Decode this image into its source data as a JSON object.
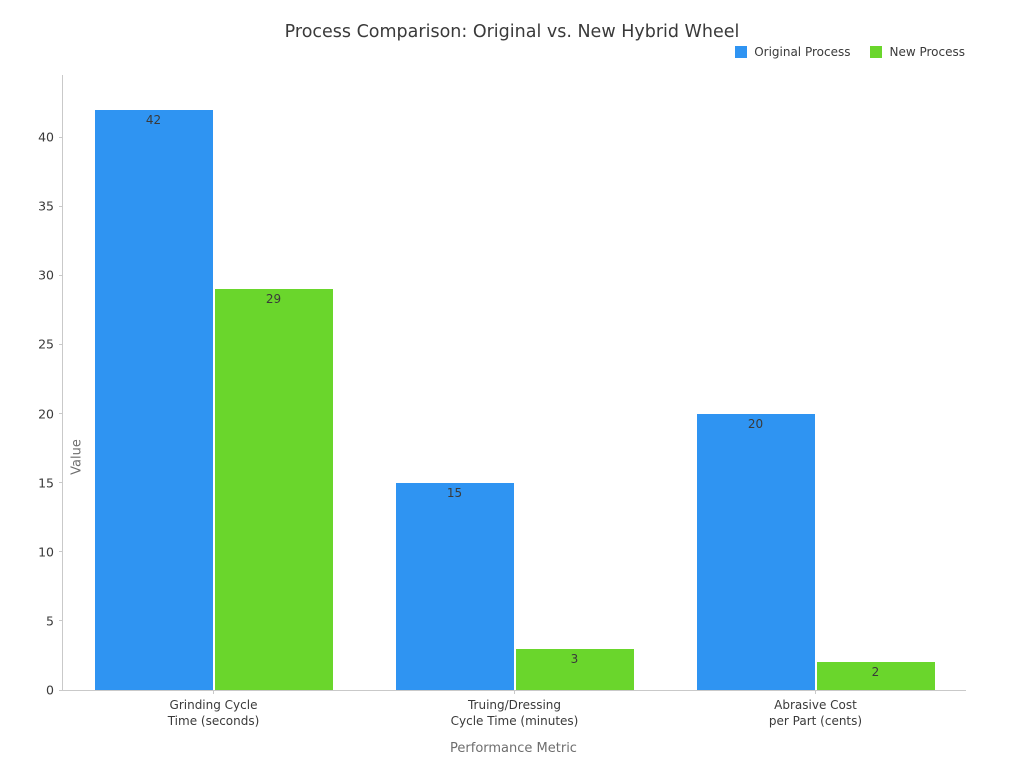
{
  "title": "Process Comparison: Original vs. New Hybrid Wheel",
  "chart_data": {
    "type": "bar",
    "title": "Process Comparison: Original vs. New Hybrid Wheel",
    "xlabel": "Performance Metric",
    "ylabel": "Value",
    "categories": [
      [
        "Grinding Cycle",
        "Time (seconds)"
      ],
      [
        "Truing/Dressing",
        "Cycle Time (minutes)"
      ],
      [
        "Abrasive Cost",
        "per Part (cents)"
      ]
    ],
    "series": [
      {
        "name": "Original Process",
        "color": "#2F94F2",
        "values": [
          42,
          15,
          20
        ]
      },
      {
        "name": "New Process",
        "color": "#6AD62C",
        "values": [
          29,
          3,
          2
        ]
      }
    ],
    "ylim": [
      0,
      44.5
    ],
    "yticks": [
      0,
      5,
      10,
      15,
      20,
      25,
      30,
      35,
      40
    ],
    "grid": false,
    "legend_position": "top-right",
    "bar_value_labels": true,
    "colors": {
      "axis_line": "#c9c9c9",
      "tick_label": "#3a3a3a",
      "axis_title": "#6e6e6e",
      "value_label": "#3a3a3a",
      "background": "#ffffff"
    }
  }
}
